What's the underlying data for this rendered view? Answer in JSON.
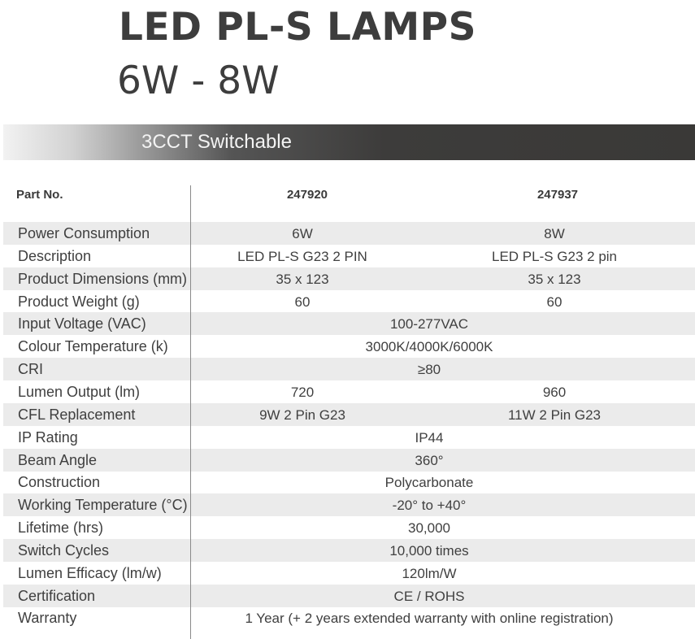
{
  "title": "LED PL-S LAMPS",
  "subtitle": "6W - 8W",
  "banner": "3CCT Switchable",
  "header": {
    "part_label": "Part No.",
    "parts": [
      "247920",
      "247937"
    ]
  },
  "rows": [
    {
      "label": "Power Consumption",
      "values": [
        "6W",
        "8W"
      ]
    },
    {
      "label": "Description",
      "values": [
        "LED PL-S G23 2 PIN",
        "LED PL-S G23 2 pin"
      ]
    },
    {
      "label": "Product Dimensions (mm)",
      "values": [
        "35 x 123",
        "35 x 123"
      ]
    },
    {
      "label": "Product Weight (g)",
      "values": [
        "60",
        "60"
      ]
    },
    {
      "label": "Input Voltage (VAC)",
      "values": [
        "100-277VAC"
      ]
    },
    {
      "label": "Colour Temperature (k)",
      "values": [
        "3000K/4000K/6000K"
      ]
    },
    {
      "label": "CRI",
      "values": [
        "≥80"
      ]
    },
    {
      "label": "Lumen Output (lm)",
      "values": [
        "720",
        "960"
      ]
    },
    {
      "label": "CFL Replacement",
      "values": [
        "9W 2 Pin G23",
        "11W 2 Pin G23"
      ]
    },
    {
      "label": "IP Rating",
      "values": [
        "IP44"
      ]
    },
    {
      "label": "Beam Angle",
      "values": [
        "360°"
      ]
    },
    {
      "label": "Construction",
      "values": [
        "Polycarbonate"
      ]
    },
    {
      "label": "Working Temperature (°C)",
      "values": [
        "-20° to +40°"
      ]
    },
    {
      "label": "Lifetime (hrs)",
      "values": [
        "30,000"
      ]
    },
    {
      "label": "Switch Cycles",
      "values": [
        "10,000 times"
      ]
    },
    {
      "label": "Lumen Efficacy (lm/w)",
      "values": [
        "120lm/W"
      ]
    },
    {
      "label": "Certification",
      "values": [
        "CE / ROHS"
      ]
    },
    {
      "label": "Warranty",
      "values": [
        "1 Year (+ 2 years extended warranty with online registration)"
      ]
    }
  ]
}
